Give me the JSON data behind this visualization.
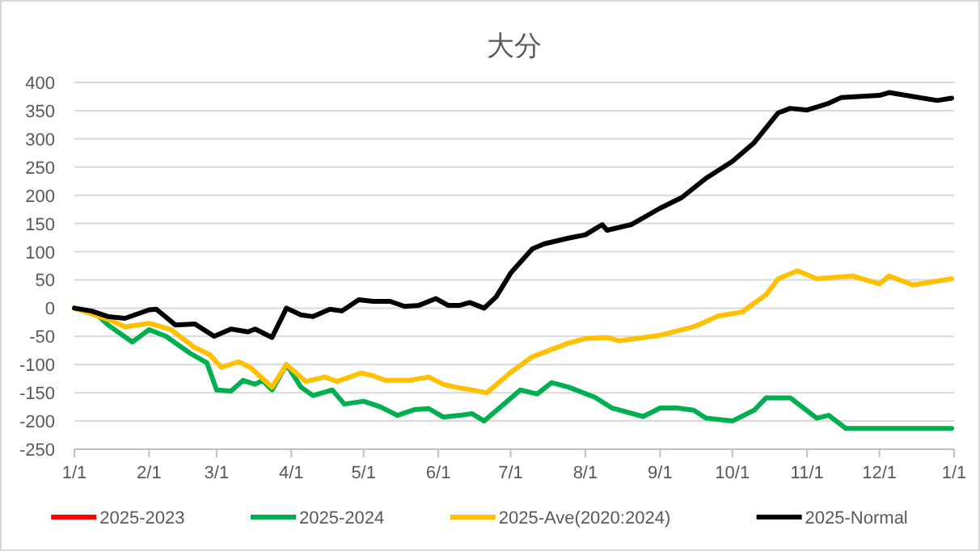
{
  "chart_data": {
    "type": "line",
    "title": "大分",
    "xlim": [
      "2025-01-01",
      "2026-01-01"
    ],
    "ylim": [
      -250,
      400
    ],
    "yticks": [
      -250,
      -200,
      -150,
      -100,
      -50,
      0,
      50,
      100,
      150,
      200,
      250,
      300,
      350,
      400
    ],
    "xticks": [
      {
        "value": "2025-01-01",
        "label": "1/1"
      },
      {
        "value": "2025-02-01",
        "label": "2/1"
      },
      {
        "value": "2025-03-01",
        "label": "3/1"
      },
      {
        "value": "2025-04-01",
        "label": "4/1"
      },
      {
        "value": "2025-05-01",
        "label": "5/1"
      },
      {
        "value": "2025-06-01",
        "label": "6/1"
      },
      {
        "value": "2025-07-01",
        "label": "7/1"
      },
      {
        "value": "2025-08-01",
        "label": "8/1"
      },
      {
        "value": "2025-09-01",
        "label": "9/1"
      },
      {
        "value": "2025-10-01",
        "label": "10/1"
      },
      {
        "value": "2025-11-01",
        "label": "11/1"
      },
      {
        "value": "2025-12-01",
        "label": "12/1"
      },
      {
        "value": "2026-01-01",
        "label": "1/1"
      }
    ],
    "grid": "y",
    "legend": "bottom",
    "line_style": "solid",
    "marker": "none",
    "series": [
      {
        "name": "2025-2023",
        "color": "#ff0000"
      },
      {
        "name": "2025-2024",
        "color": "#00b050",
        "x": [
          "2025-01-01",
          "2025-01-10",
          "2025-01-15",
          "2025-01-25",
          "2025-02-01",
          "2025-02-08",
          "2025-02-18",
          "2025-02-25",
          "2025-03-01",
          "2025-03-07",
          "2025-03-12",
          "2025-03-17",
          "2025-03-20",
          "2025-03-24",
          "2025-03-30",
          "2025-04-05",
          "2025-04-10",
          "2025-04-18",
          "2025-04-23",
          "2025-05-01",
          "2025-05-08",
          "2025-05-15",
          "2025-05-22",
          "2025-05-28",
          "2025-06-03",
          "2025-06-10",
          "2025-06-15",
          "2025-06-20",
          "2025-06-26",
          "2025-07-05",
          "2025-07-12",
          "2025-07-18",
          "2025-07-25",
          "2025-08-05",
          "2025-08-12",
          "2025-08-25",
          "2025-09-01",
          "2025-09-08",
          "2025-09-15",
          "2025-09-20",
          "2025-10-01",
          "2025-10-10",
          "2025-10-15",
          "2025-10-25",
          "2025-11-05",
          "2025-11-10",
          "2025-11-17",
          "2025-12-31"
        ],
        "values": [
          0,
          -10,
          -30,
          -60,
          -38,
          -50,
          -80,
          -97,
          -145,
          -147,
          -128,
          -135,
          -128,
          -145,
          -100,
          -140,
          -155,
          -145,
          -170,
          -165,
          -175,
          -190,
          -180,
          -178,
          -193,
          -190,
          -187,
          -200,
          -178,
          -145,
          -152,
          -132,
          -140,
          -158,
          -177,
          -192,
          -177,
          -177,
          -181,
          -195,
          -200,
          -181,
          -159,
          -159,
          -195,
          -190,
          -213,
          -213
        ]
      },
      {
        "name": "2025-Ave(2020:2024)",
        "color": "#ffc000",
        "x": [
          "2025-01-01",
          "2025-01-15",
          "2025-01-22",
          "2025-02-01",
          "2025-02-10",
          "2025-02-20",
          "2025-02-26",
          "2025-03-03",
          "2025-03-10",
          "2025-03-15",
          "2025-03-24",
          "2025-03-30",
          "2025-04-07",
          "2025-04-15",
          "2025-04-20",
          "2025-04-30",
          "2025-05-05",
          "2025-05-10",
          "2025-05-20",
          "2025-05-28",
          "2025-06-03",
          "2025-06-08",
          "2025-06-15",
          "2025-06-21",
          "2025-06-28",
          "2025-07-01",
          "2025-07-10",
          "2025-07-25",
          "2025-08-01",
          "2025-08-10",
          "2025-08-15",
          "2025-09-01",
          "2025-09-15",
          "2025-09-25",
          "2025-10-05",
          "2025-10-15",
          "2025-10-20",
          "2025-10-28",
          "2025-11-05",
          "2025-11-20",
          "2025-12-01",
          "2025-12-05",
          "2025-12-15",
          "2025-12-31"
        ],
        "values": [
          0,
          -20,
          -33,
          -27,
          -38,
          -70,
          -82,
          -105,
          -95,
          -105,
          -140,
          -100,
          -130,
          -122,
          -130,
          -115,
          -120,
          -128,
          -128,
          -122,
          -135,
          -140,
          -145,
          -150,
          -125,
          -114,
          -86,
          -62,
          -54,
          -52,
          -58,
          -48,
          -33,
          -14,
          -7,
          24,
          52,
          66,
          52,
          57,
          43,
          57,
          41,
          52
        ]
      },
      {
        "name": "2025-Normal",
        "color": "#000000",
        "x": [
          "2025-01-01",
          "2025-01-08",
          "2025-01-15",
          "2025-01-22",
          "2025-02-01",
          "2025-02-04",
          "2025-02-12",
          "2025-02-20",
          "2025-02-28",
          "2025-03-07",
          "2025-03-14",
          "2025-03-17",
          "2025-03-24",
          "2025-03-30",
          "2025-04-05",
          "2025-04-10",
          "2025-04-17",
          "2025-04-22",
          "2025-04-29",
          "2025-05-05",
          "2025-05-12",
          "2025-05-18",
          "2025-05-24",
          "2025-05-31",
          "2025-06-05",
          "2025-06-10",
          "2025-06-14",
          "2025-06-20",
          "2025-06-25",
          "2025-07-01",
          "2025-07-10",
          "2025-07-15",
          "2025-07-25",
          "2025-08-01",
          "2025-08-08",
          "2025-08-10",
          "2025-08-20",
          "2025-09-01",
          "2025-09-10",
          "2025-09-20",
          "2025-10-01",
          "2025-10-10",
          "2025-10-20",
          "2025-10-25",
          "2025-11-01",
          "2025-11-10",
          "2025-11-15",
          "2025-12-01",
          "2025-12-05",
          "2025-12-15",
          "2025-12-25",
          "2025-12-31"
        ],
        "values": [
          0,
          -5,
          -15,
          -18,
          -3,
          -2,
          -30,
          -28,
          -50,
          -37,
          -42,
          -37,
          -52,
          0,
          -12,
          -15,
          -2,
          -5,
          15,
          12,
          12,
          3,
          5,
          17,
          5,
          5,
          10,
          0,
          20,
          62,
          105,
          114,
          124,
          130,
          148,
          138,
          148,
          177,
          196,
          230,
          260,
          293,
          346,
          354,
          351,
          363,
          373,
          377,
          382,
          375,
          368,
          372
        ]
      }
    ]
  }
}
